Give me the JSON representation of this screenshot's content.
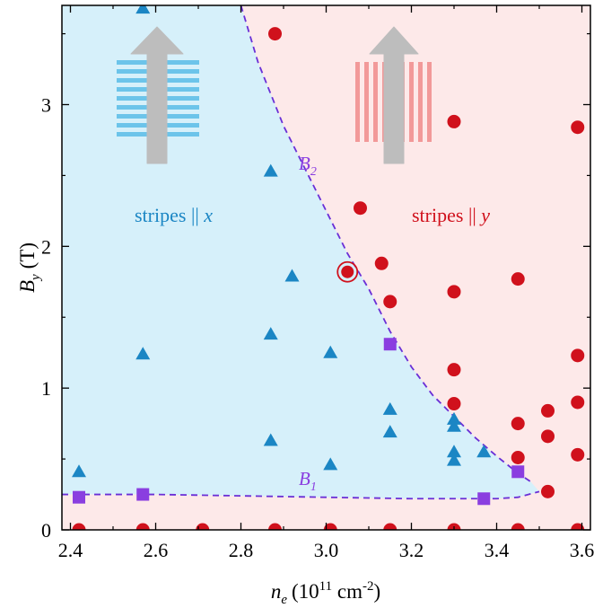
{
  "chart_data": {
    "type": "scatter",
    "xlabel": {
      "main": "n",
      "sub": "e",
      "unit": "(10",
      "sup": "11",
      "unit2": " cm",
      "sup2": "-2",
      "close": ")"
    },
    "ylabel": {
      "main": "B",
      "sub": "y",
      "unit": "(T)"
    },
    "xlim": [
      2.38,
      3.62
    ],
    "ylim": [
      0,
      3.7
    ],
    "x_ticks": [
      "2.4",
      "2.6",
      "2.8",
      "3.0",
      "3.2",
      "3.4",
      "3.6"
    ],
    "y_ticks": [
      "0",
      "1",
      "2",
      "3"
    ],
    "regions": [
      {
        "label_text": "stripes || ",
        "label_var": "x",
        "color": "#d6f0fa",
        "text_color": "#1b86c4"
      },
      {
        "label_text": "stripes || ",
        "label_var": "y",
        "color": "#fde9e9",
        "text_color": "#d0111c"
      }
    ],
    "boundaries": [
      {
        "name": "B",
        "sub": "2",
        "x": [
          2.8,
          2.84,
          2.9,
          2.95,
          3.0,
          3.05,
          3.1,
          3.15,
          3.2,
          3.25,
          3.3,
          3.35,
          3.4,
          3.45,
          3.48
        ],
        "y": [
          3.7,
          3.3,
          2.85,
          2.55,
          2.25,
          1.95,
          1.7,
          1.4,
          1.15,
          0.95,
          0.8,
          0.65,
          0.52,
          0.4,
          0.34
        ]
      },
      {
        "name": "B",
        "sub": "1",
        "x": [
          2.38,
          2.5,
          2.6,
          2.8,
          3.0,
          3.2,
          3.4,
          3.45,
          3.5
        ],
        "y": [
          0.25,
          0.25,
          0.25,
          0.24,
          0.23,
          0.22,
          0.22,
          0.23,
          0.27
        ]
      }
    ],
    "series": [
      {
        "marker": "triangle",
        "color": "#1b86c4",
        "points": [
          [
            2.42,
            0.41
          ],
          [
            2.57,
            3.68
          ],
          [
            2.57,
            1.24
          ],
          [
            2.87,
            2.53
          ],
          [
            2.87,
            1.38
          ],
          [
            2.87,
            0.63
          ],
          [
            2.92,
            1.79
          ],
          [
            3.01,
            1.25
          ],
          [
            3.01,
            0.46
          ],
          [
            3.15,
            0.85
          ],
          [
            3.15,
            0.69
          ],
          [
            3.3,
            0.78
          ],
          [
            3.3,
            0.73
          ],
          [
            3.3,
            0.55
          ],
          [
            3.3,
            0.49
          ],
          [
            3.37,
            0.55
          ]
        ]
      },
      {
        "marker": "circle",
        "color": "#d0111c",
        "points": [
          [
            2.42,
            0.0
          ],
          [
            2.57,
            0.0
          ],
          [
            2.71,
            0.0
          ],
          [
            2.88,
            0.0
          ],
          [
            3.01,
            0.0
          ],
          [
            3.15,
            0.0
          ],
          [
            3.3,
            0.0
          ],
          [
            3.45,
            0.0
          ],
          [
            3.59,
            0.0
          ],
          [
            2.88,
            3.5
          ],
          [
            3.3,
            2.88
          ],
          [
            3.08,
            2.27
          ],
          [
            3.13,
            1.88
          ],
          [
            3.15,
            1.61
          ],
          [
            3.3,
            1.68
          ],
          [
            3.45,
            1.77
          ],
          [
            3.59,
            2.84
          ],
          [
            3.3,
            1.13
          ],
          [
            3.3,
            0.89
          ],
          [
            3.45,
            0.75
          ],
          [
            3.45,
            0.51
          ],
          [
            3.52,
            0.84
          ],
          [
            3.52,
            0.66
          ],
          [
            3.52,
            0.27
          ],
          [
            3.59,
            1.23
          ],
          [
            3.59,
            0.9
          ],
          [
            3.59,
            0.53
          ]
        ]
      },
      {
        "marker": "circle-ringed",
        "color": "#d0111c",
        "points": [
          [
            3.05,
            1.82
          ]
        ]
      },
      {
        "marker": "square",
        "color": "#8a3ee0",
        "points": [
          [
            2.42,
            0.23
          ],
          [
            2.57,
            0.25
          ],
          [
            3.15,
            1.31
          ],
          [
            3.37,
            0.22
          ],
          [
            3.45,
            0.41
          ]
        ]
      }
    ],
    "grid": false,
    "legend": "none"
  }
}
